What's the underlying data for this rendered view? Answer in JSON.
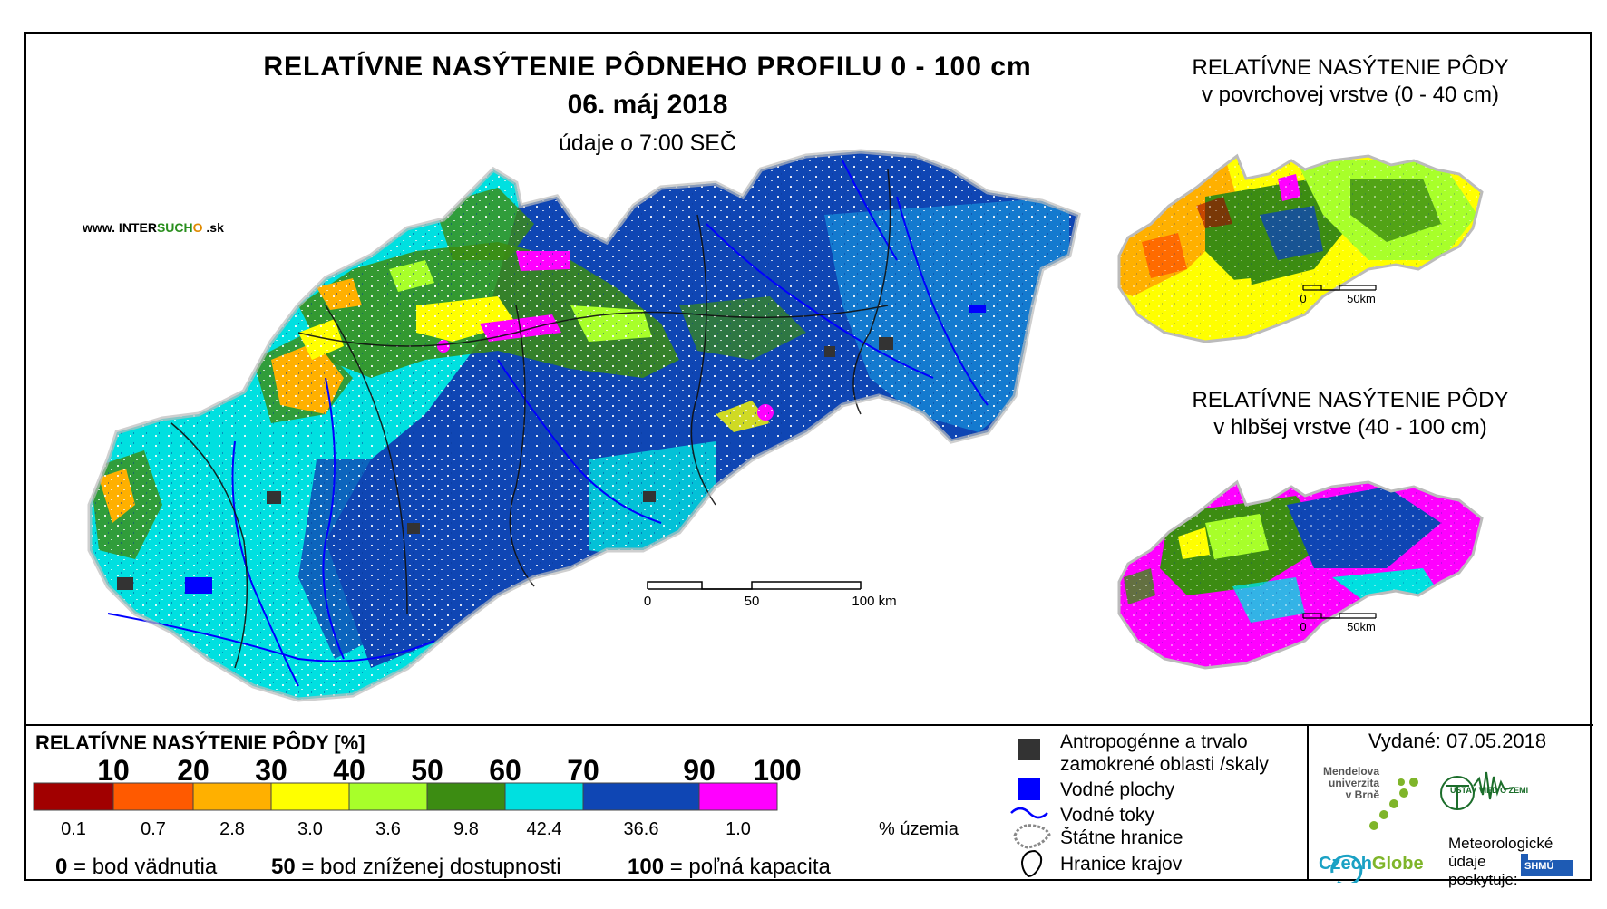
{
  "main": {
    "title": "RELATÍVNE NASÝTENIE PÔDNEHO PROFILU 0 - 100 cm",
    "date": "06. máj 2018",
    "subtitle": "údaje o 7:00 SEČ",
    "website_prefix": "www. INTER",
    "website_mid": "SUCH",
    "website_o": "O",
    "website_suffix": " .sk",
    "scale_labels": [
      "0",
      "50",
      "100 km"
    ]
  },
  "inset_surface": {
    "title_line1": "RELATÍVNE NASÝTENIE PÔDY",
    "title_line2": "v povrchovej vrstve (0 - 40 cm)",
    "scale_labels": [
      "0",
      "50km"
    ]
  },
  "inset_deep": {
    "title_line1": "RELATÍVNE NASÝTENIE PÔDY",
    "title_line2": "v hlbšej vrstve (40 - 100 cm)",
    "scale_labels": [
      "0",
      "50km"
    ]
  },
  "legend": {
    "title": "RELATÍVNE NASÝTENIE PÔDY [%]",
    "thresholds": [
      "10",
      "20",
      "30",
      "40",
      "50",
      "60",
      "70",
      "90",
      "100"
    ],
    "classes": [
      {
        "color": "#a10000",
        "percent": "0.1"
      },
      {
        "color": "#ff5a00",
        "percent": "0.7"
      },
      {
        "color": "#ffb000",
        "percent": "2.8"
      },
      {
        "color": "#ffff00",
        "percent": "3.0"
      },
      {
        "color": "#a8ff2a",
        "percent": "3.6"
      },
      {
        "color": "#3c8c12",
        "percent": "9.8"
      },
      {
        "color": "#00e0e0",
        "percent": "42.4"
      },
      {
        "color": "#0f46b4",
        "percent": "36.6"
      },
      {
        "color": "#ff00ff",
        "percent": "1.0"
      }
    ],
    "percent_unit": "% územia",
    "note_0_num": "0",
    "note_0_text": " = bod vädnutia",
    "note_50_num": "50",
    "note_50_text": " = bod zníženej dostupnosti",
    "note_100_num": "100",
    "note_100_text": " = poľná kapacita"
  },
  "symbols": {
    "anthro_line1": "Antropogénne a trvalo",
    "anthro_line2": "zamokrené oblasti /skaly",
    "water_areas": "Vodné plochy",
    "rivers": "Vodné toky",
    "state_border": "Štátne hranice",
    "region_border": "Hranice krajov"
  },
  "credits": {
    "issued": "Vydané: 07.05.2018",
    "mendel_line1": "Mendelova",
    "mendel_line2": "univerzita",
    "mendel_line3": "v Brně",
    "czechglobe_a": "Czech",
    "czechglobe_b": "Globe",
    "uvz": "ÚSTAV VIED O ZEMI",
    "meteo_line1": "Meteorologické",
    "meteo_line2": "údaje",
    "meteo_line3": "poskytuje:",
    "shmu": "SHMÚ"
  },
  "colors": {
    "dry_red": "#a10000",
    "wet_magenta": "#ff00ff",
    "cyan": "#00e0e0",
    "blue": "#0f46b4",
    "anthro_gray": "#333333",
    "water_blue": "#0000ff"
  }
}
